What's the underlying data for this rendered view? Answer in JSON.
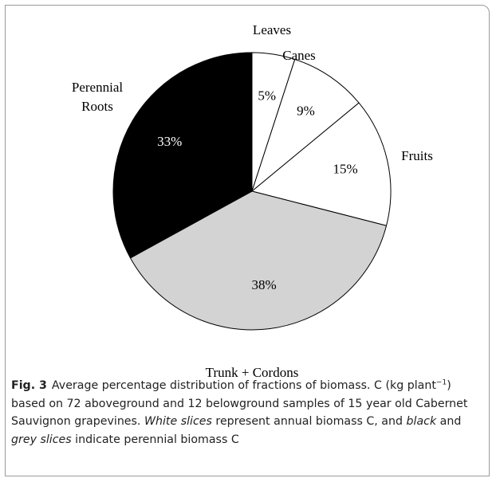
{
  "chart_data": {
    "type": "pie",
    "categories": [
      "Leaves",
      "Canes",
      "Fruits",
      "Trunk + Cordons",
      "Perennial Roots"
    ],
    "values": [
      5,
      9,
      15,
      38,
      33
    ],
    "value_labels": [
      "5%",
      "9%",
      "15%",
      "38%",
      "33%"
    ],
    "colors": [
      "#ffffff",
      "#ffffff",
      "#ffffff",
      "#d3d3d3",
      "#000000"
    ],
    "label_colors": [
      "#000000",
      "#000000",
      "#000000",
      "#000000",
      "#ffffff"
    ]
  },
  "caption": {
    "label": "Fig. 3",
    "segments": [
      {
        "text": "Average percentage distribution of fractions of biomass. C (kg plant",
        "style": "normal"
      },
      {
        "text": "−1",
        "style": "sup"
      },
      {
        "text": ") based on 72 aboveground and 12 belowground samples of 15 year old Cabernet Sauvignon grapevines. ",
        "style": "normal"
      },
      {
        "text": "White slices",
        "style": "italic"
      },
      {
        "text": " represent annual biomass C, and ",
        "style": "normal"
      },
      {
        "text": "black",
        "style": "italic"
      },
      {
        "text": " and ",
        "style": "normal"
      },
      {
        "text": "grey slices",
        "style": "italic"
      },
      {
        "text": " indicate perennial biomass C",
        "style": "normal"
      }
    ]
  }
}
